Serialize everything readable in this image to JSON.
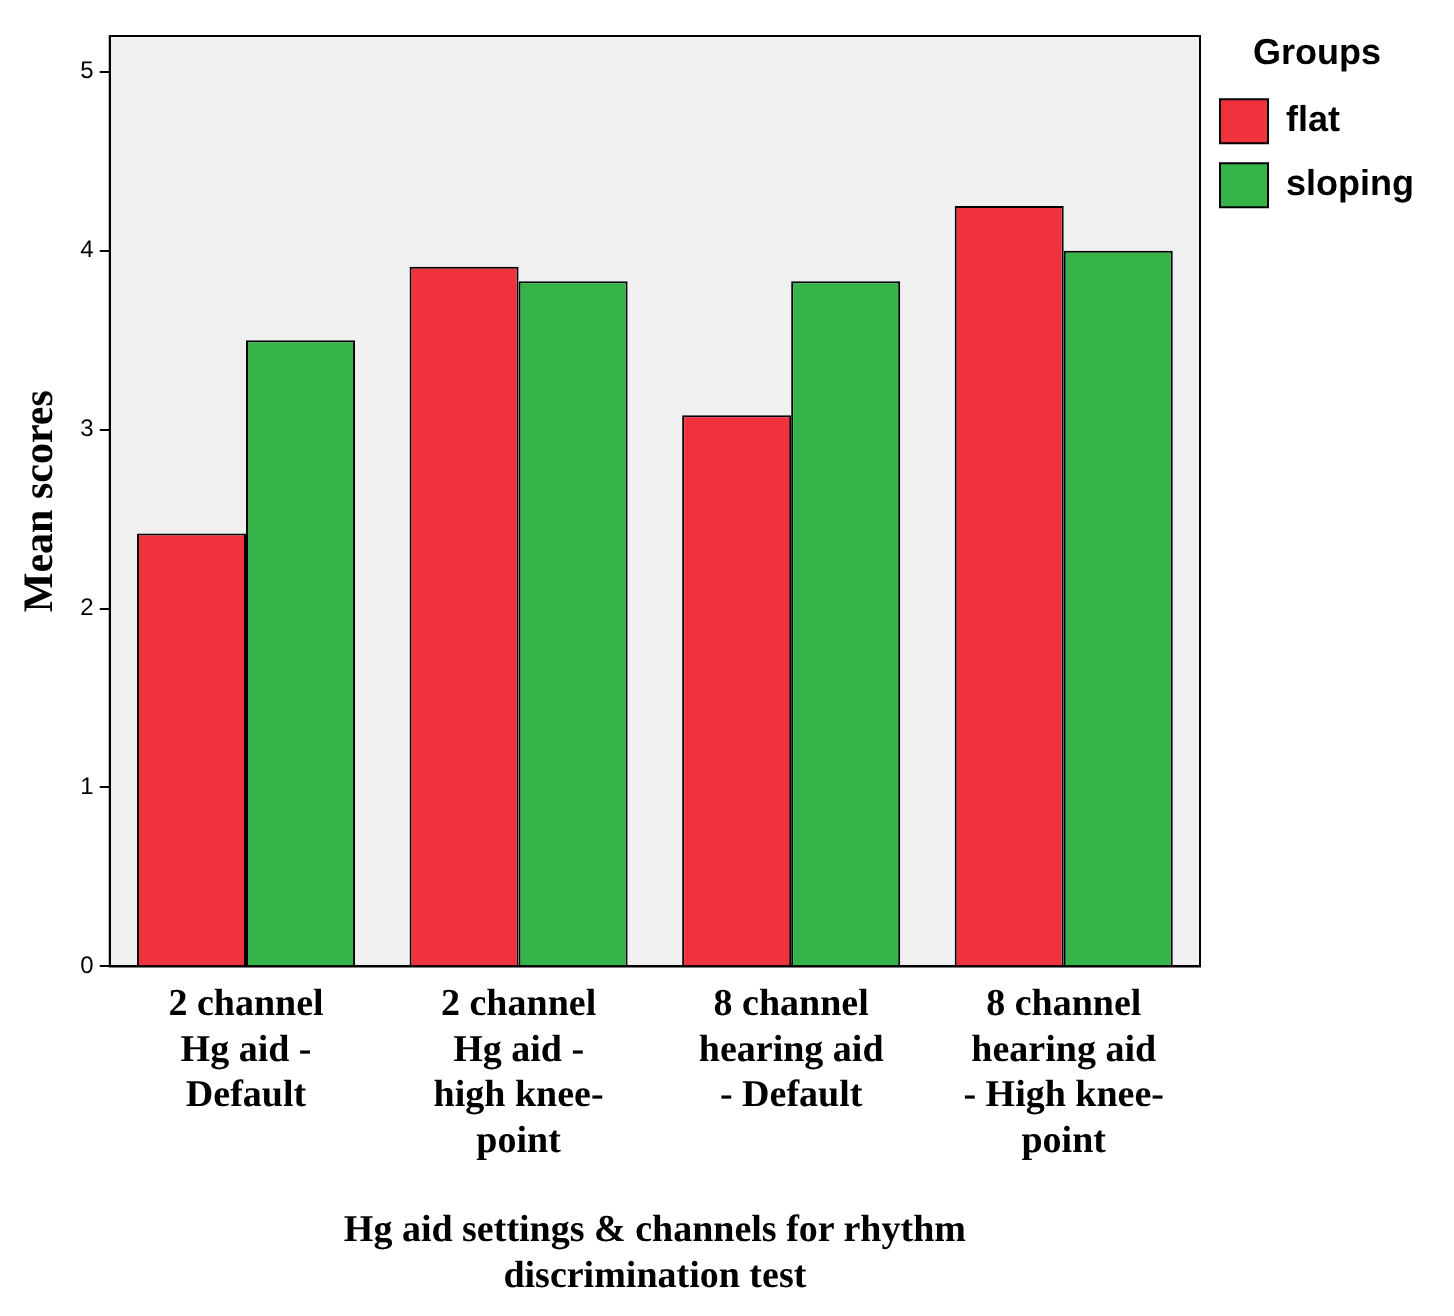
{
  "chart_data": {
    "type": "bar",
    "xlabel": "Hg aid settings & channels for rhythm\ndiscrimination test",
    "ylabel": "Mean scores",
    "legend_title": "Groups",
    "categories": [
      "2 channel\nHg aid -\nDefault",
      "2 channel\nHg aid -\nhigh knee-\npoint",
      "8 channel\nhearing aid\n- Default",
      "8 channel\nhearing aid\n- High knee-\npoint"
    ],
    "series": [
      {
        "name": "flat",
        "color": "#f0323c",
        "values": [
          2.42,
          3.91,
          3.08,
          4.25
        ]
      },
      {
        "name": "sloping",
        "color": "#36b44a",
        "values": [
          3.5,
          3.83,
          3.83,
          4.0
        ]
      }
    ],
    "ylim": [
      0,
      5.2
    ],
    "yticks": [
      0,
      1,
      2,
      3,
      4,
      5
    ],
    "grid": false,
    "legend": "top right"
  }
}
